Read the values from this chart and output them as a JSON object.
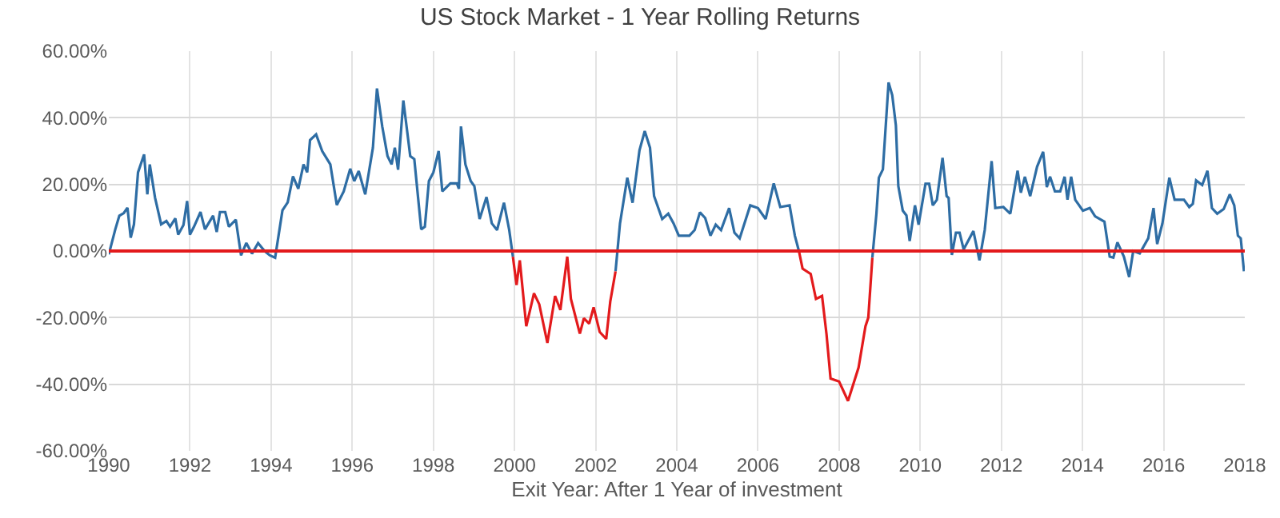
{
  "chart_data": {
    "type": "line",
    "title": "US Stock Market - 1 Year Rolling Returns",
    "xlabel": "Exit Year: After 1 Year of investment",
    "xlim": [
      1990,
      2018
    ],
    "xticks": [
      1990,
      1992,
      1994,
      1996,
      1998,
      2000,
      2002,
      2004,
      2006,
      2008,
      2010,
      2012,
      2014,
      2016,
      2018
    ],
    "ylim": [
      -60,
      60
    ],
    "yticks": [
      {
        "value": -60,
        "label": "-60.00%"
      },
      {
        "value": -40,
        "label": "-40.00%"
      },
      {
        "value": -20,
        "label": "-20.00%"
      },
      {
        "value": 0,
        "label": "0.00%"
      },
      {
        "value": 20,
        "label": "20.00%"
      },
      {
        "value": 40,
        "label": "40.00%"
      },
      {
        "value": 60,
        "label": "60.00%"
      }
    ],
    "grid": true,
    "ref_lines": [
      {
        "axis": "y",
        "value": 0,
        "color": "#e31a1c"
      }
    ],
    "series": [
      {
        "color": "#2e6da4",
        "x": [
          1990,
          1990.16,
          1990.26,
          1990.37,
          1990.46,
          1990.54,
          1990.62,
          1990.72,
          1990.87,
          1990.95,
          1991.01,
          1991.14,
          1991.29,
          1991.42,
          1991.51,
          1991.64,
          1991.71,
          1991.84,
          1991.93,
          1992,
          1992.1,
          1992.26,
          1992.37,
          1992.57,
          1992.66,
          1992.74,
          1992.87,
          1992.96,
          1993.13,
          1993.26,
          1993.39,
          1993.53,
          1993.68,
          1993.84,
          1993.97,
          1994.1,
          1994.28,
          1994.41,
          1994.54,
          1994.67,
          1994.8,
          1994.89,
          1994.96,
          1995.11,
          1995.26,
          1995.46,
          1995.62,
          1995.79,
          1995.95,
          1996.05,
          1996.16,
          1996.32,
          1996.51,
          1996.61,
          1996.74,
          1996.87,
          1996.97,
          1997.05,
          1997.13,
          1997.26,
          1997.43,
          1997.53,
          1997.7,
          1997.79,
          1997.89,
          1998,
          1998.13,
          1998.22,
          1998.42,
          1998.58,
          1998.63,
          1998.68,
          1998.79,
          1998.92,
          1999.01,
          1999.14,
          1999.31,
          1999.44,
          1999.57,
          1999.74,
          1999.87,
          1999.96,
          2001,
          2002.49,
          2002.6,
          2002.78,
          2002.91,
          2003.08,
          2003.21,
          2003.34,
          2003.44,
          2003.64,
          2003.79,
          2003.92,
          2004.05,
          2004.31,
          2004.44,
          2004.57,
          2004.7,
          2004.83,
          2004.96,
          2005.09,
          2005.29,
          2005.42,
          2005.55,
          2005.81,
          2006,
          2006.19,
          2006.39,
          2006.55,
          2006.78,
          2006.91,
          2007.01,
          2008,
          2008.82,
          2008.92,
          2008.98,
          2009.08,
          2009.22,
          2009.31,
          2009.4,
          2009.46,
          2009.57,
          2009.66,
          2009.74,
          2009.87,
          2009.96,
          2010.13,
          2010.22,
          2010.31,
          2010.41,
          2010.55,
          2010.65,
          2010.7,
          2010.78,
          2010.88,
          2010.97,
          2011.07,
          2011.31,
          2011.46,
          2011.59,
          2011.76,
          2011.85,
          2012.05,
          2012.22,
          2012.4,
          2012.48,
          2012.58,
          2012.71,
          2012.88,
          2013.03,
          2013.12,
          2013.2,
          2013.32,
          2013.45,
          2013.56,
          2013.63,
          2013.72,
          2013.82,
          2014.01,
          2014.18,
          2014.31,
          2014.54,
          2014.67,
          2014.76,
          2014.86,
          2015.02,
          2015.15,
          2015.25,
          2015.41,
          2015.62,
          2015.75,
          2015.84,
          2015.97,
          2016.14,
          2016.27,
          2016.5,
          2016.63,
          2016.72,
          2016.8,
          2016.95,
          2017.08,
          2017.19,
          2017.32,
          2017.48,
          2017.63,
          2017.74,
          2017.83,
          2017.9,
          2017.98
        ],
        "values": [
          -1,
          6.5,
          10.6,
          11.4,
          13,
          4,
          8,
          23.6,
          29,
          17,
          26,
          16,
          8,
          9,
          7.3,
          9.8,
          4.9,
          7.8,
          15,
          4.9,
          7.3,
          11.7,
          6.5,
          10.6,
          5.7,
          11.7,
          11.7,
          7.3,
          9.4,
          -1.3,
          2.4,
          -0.8,
          2.4,
          0,
          -1.3,
          -2,
          12.2,
          14.6,
          22.4,
          18.7,
          26,
          23.6,
          33.3,
          35,
          30,
          26,
          13.8,
          17.9,
          24.7,
          21,
          24,
          17,
          31,
          48.8,
          37.4,
          28.5,
          26,
          31,
          24.4,
          45.2,
          28.5,
          27.6,
          6.5,
          7.3,
          21,
          23.6,
          30,
          17.9,
          20.3,
          20.3,
          18.7,
          37.4,
          26,
          21,
          19.5,
          9.6,
          16.2,
          8.3,
          6.3,
          14.5,
          6.3,
          -1.7,
          null,
          -6.1,
          8.3,
          22,
          14.5,
          30.2,
          36,
          31,
          16.5,
          9.6,
          11.2,
          8.3,
          4.6,
          4.6,
          6.3,
          11.6,
          9.9,
          4.6,
          7.9,
          6.3,
          12.9,
          5.5,
          3.8,
          13.7,
          12.9,
          9.6,
          20.3,
          13.2,
          13.7,
          4.6,
          0,
          null,
          -2,
          11.2,
          22,
          24.5,
          50.6,
          46.8,
          37.7,
          19.5,
          12.1,
          10.7,
          3,
          13.7,
          7.9,
          20.2,
          20.2,
          13.7,
          15.4,
          28,
          16.5,
          15.9,
          -1.2,
          5.5,
          5.5,
          0.5,
          6,
          -2.8,
          6.3,
          27,
          12.9,
          13.2,
          11.2,
          24.1,
          17.5,
          22.3,
          16.5,
          25.3,
          29.8,
          19.2,
          22.3,
          17.9,
          17.9,
          22.3,
          15.4,
          22.3,
          15.4,
          12.1,
          12.9,
          10.4,
          8.8,
          -1.7,
          -2,
          2.6,
          -1.7,
          -7.8,
          0,
          -0.7,
          3.8,
          12.9,
          2.1,
          8.3,
          22,
          15.4,
          15.4,
          13.2,
          14.2,
          21.2,
          19.8,
          24.1,
          12.9,
          11.2,
          12.6,
          17,
          13.7,
          4.6,
          3.8,
          -6.1
        ]
      },
      {
        "color": "#e31a1c",
        "x": [
          1999.96,
          2000.05,
          2000.13,
          2000.29,
          2000.48,
          2000.61,
          2000.81,
          2001,
          2001.13,
          2001.3,
          2001.39,
          2001.61,
          2001.71,
          2001.84,
          2001.95,
          2002.1,
          2002.26,
          2002.36,
          2002.49,
          2005,
          2007.01,
          2007.1,
          2007.3,
          2007.43,
          2007.58,
          2007.69,
          2007.79,
          2008,
          2008.22,
          2008.35,
          2008.48,
          2008.65,
          2008.72,
          2008.82
        ],
        "values": [
          -1.7,
          -10.2,
          -2.8,
          -22.6,
          -12.7,
          -16,
          -27.6,
          -13.5,
          -17.7,
          -1.7,
          -14.4,
          -24.8,
          -20.2,
          -21.8,
          -16.9,
          -24.3,
          -26.4,
          -15.2,
          -6.1,
          null,
          0,
          -5.3,
          -6.9,
          -14.4,
          -13.5,
          -25,
          -38.3,
          -39.2,
          -45,
          -40,
          -35,
          -22.6,
          -20,
          -2
        ]
      }
    ]
  }
}
